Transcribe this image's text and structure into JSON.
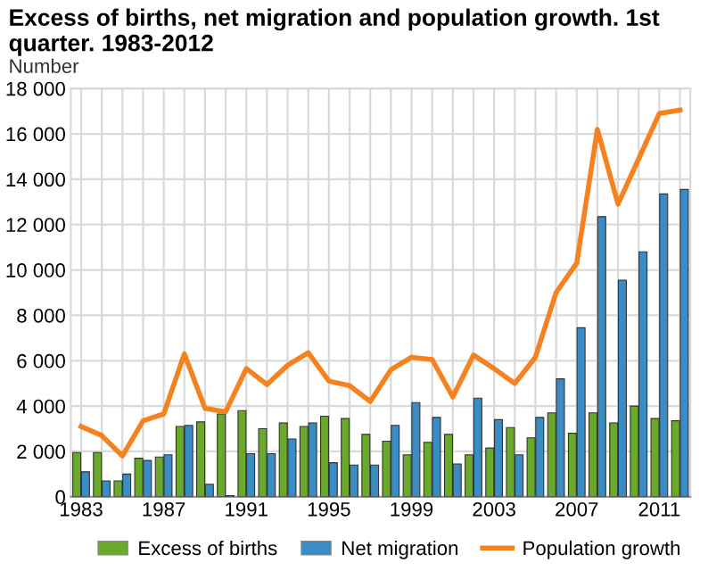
{
  "chart_data": {
    "type": "bar",
    "title": "Excess of births, net migration and population growth. 1st quarter. 1983-2012",
    "ylabel": "Number",
    "categories": [
      "1983",
      null,
      null,
      null,
      "1987",
      null,
      null,
      null,
      "1991",
      null,
      null,
      null,
      "1995",
      null,
      null,
      null,
      "1999",
      null,
      null,
      null,
      "2003",
      null,
      null,
      null,
      "2007",
      null,
      null,
      null,
      "2011",
      null
    ],
    "series": [
      {
        "name": "Excess of births",
        "color": "#6aaa2a",
        "values": [
          1950,
          1950,
          700,
          1700,
          1750,
          3100,
          3300,
          3650,
          3800,
          3000,
          3250,
          3100,
          3550,
          3450,
          2750,
          2450,
          1850,
          2400,
          2750,
          1850,
          2150,
          3050,
          2600,
          3700,
          2800,
          3700,
          3250,
          4000,
          3450,
          3350
        ]
      },
      {
        "name": "Net migration",
        "color": "#3a8cc4",
        "values": [
          1100,
          700,
          1000,
          1600,
          1850,
          3150,
          550,
          50,
          1900,
          1900,
          2550,
          3250,
          1500,
          1400,
          1400,
          3150,
          4150,
          3500,
          1450,
          4350,
          3400,
          1850,
          3500,
          5200,
          7450,
          12350,
          9550,
          10800,
          13350,
          13550
        ]
      },
      {
        "name": "Population growth",
        "type": "line",
        "color": "#f5821f",
        "values": [
          3100,
          2700,
          1800,
          3350,
          3650,
          6300,
          3900,
          3750,
          5650,
          4950,
          5800,
          6350,
          5100,
          4900,
          4200,
          5600,
          6150,
          6050,
          4400,
          6250,
          5650,
          5000,
          6150,
          9000,
          10300,
          16200,
          12900,
          14900,
          16900,
          17050
        ]
      }
    ],
    "ylim": [
      0,
      18000
    ],
    "yticks": [
      {
        "value": 0,
        "label": "0"
      },
      {
        "value": 2000,
        "label": "2 000"
      },
      {
        "value": 4000,
        "label": "4 000"
      },
      {
        "value": 6000,
        "label": "6 000"
      },
      {
        "value": 8000,
        "label": "8 000"
      },
      {
        "value": 10000,
        "label": "10 000"
      },
      {
        "value": 12000,
        "label": "12 000"
      },
      {
        "value": 14000,
        "label": "14 000"
      },
      {
        "value": 16000,
        "label": "16 000"
      },
      {
        "value": 18000,
        "label": "18 000"
      }
    ],
    "grid": true,
    "legend": "bottom"
  }
}
